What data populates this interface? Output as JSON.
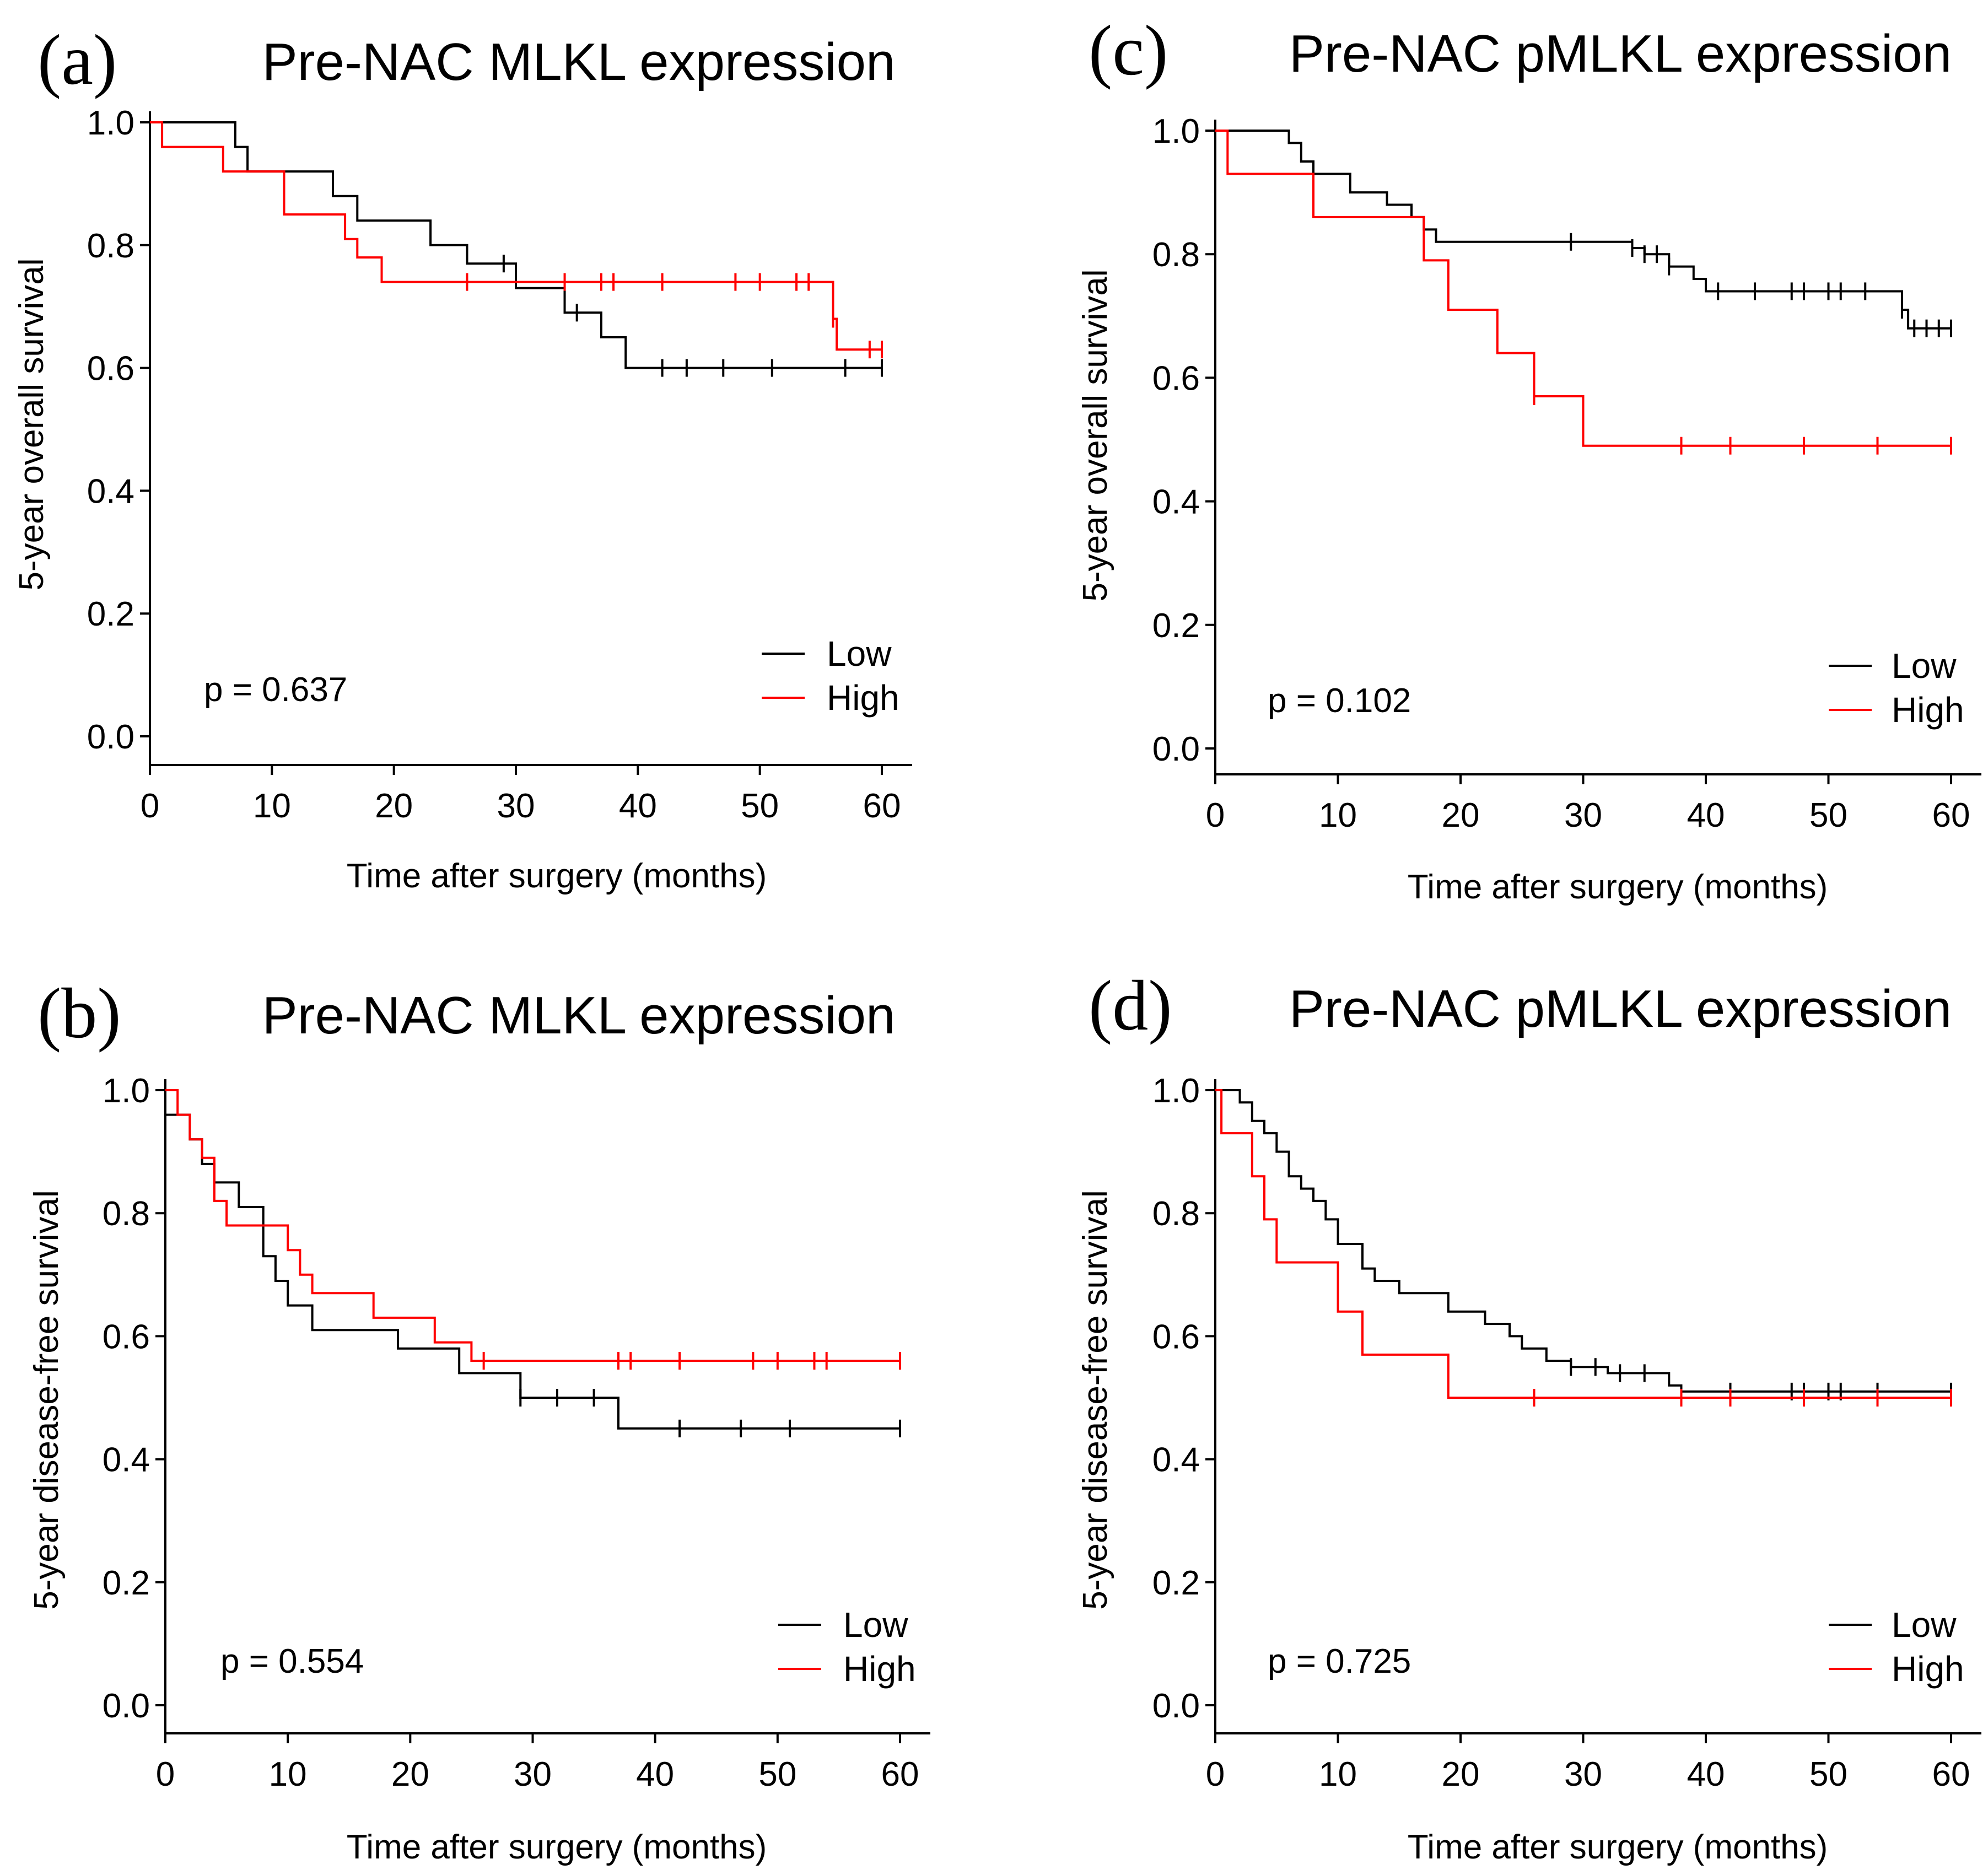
{
  "chart_data": [
    {
      "id": "a",
      "type": "line",
      "panel_label": "(a)",
      "title": "Pre-NAC MLKL expression",
      "xlabel": "Time after surgery (months)",
      "ylabel": "5-year overall survival",
      "xlim": [
        0,
        60
      ],
      "ylim": [
        0,
        1
      ],
      "x_ticks": [
        "0",
        "10",
        "20",
        "30",
        "40",
        "50",
        "60"
      ],
      "y_ticks": [
        "0.0",
        "0.2",
        "0.4",
        "0.6",
        "0.8",
        "1.0"
      ],
      "p_value": "p = 0.637",
      "legend": [
        {
          "label": "Low",
          "color": "#000000"
        },
        {
          "label": "High",
          "color": "#ff0000"
        }
      ],
      "series": [
        {
          "name": "Low",
          "color": "#000000",
          "steps": [
            [
              0,
              1.0
            ],
            [
              7,
              0.96
            ],
            [
              8,
              0.92
            ],
            [
              15,
              0.88
            ],
            [
              17,
              0.84
            ],
            [
              23,
              0.8
            ],
            [
              26,
              0.77
            ],
            [
              30,
              0.73
            ],
            [
              34,
              0.69
            ],
            [
              37,
              0.65
            ],
            [
              39,
              0.6
            ],
            [
              60,
              0.6
            ]
          ],
          "censors": [
            29,
            35,
            42,
            44,
            47,
            51,
            57,
            60
          ]
        },
        {
          "name": "High",
          "color": "#ff0000",
          "steps": [
            [
              0,
              1.0
            ],
            [
              1,
              0.96
            ],
            [
              6,
              0.92
            ],
            [
              11,
              0.85
            ],
            [
              16,
              0.81
            ],
            [
              17,
              0.78
            ],
            [
              19,
              0.74
            ],
            [
              56,
              0.68
            ],
            [
              56.3,
              0.63
            ],
            [
              60,
              0.63
            ]
          ],
          "censors": [
            26,
            34,
            37,
            38,
            42,
            48,
            50,
            53,
            54,
            56,
            59,
            60
          ]
        }
      ]
    },
    {
      "id": "b",
      "type": "line",
      "panel_label": "(b)",
      "title": "Pre-NAC MLKL expression",
      "xlabel": "Time after surgery (months)",
      "ylabel": "5-year disease-free survival",
      "xlim": [
        0,
        60
      ],
      "ylim": [
        0,
        1
      ],
      "x_ticks": [
        "0",
        "10",
        "20",
        "30",
        "40",
        "50",
        "60"
      ],
      "y_ticks": [
        "0.0",
        "0.2",
        "0.4",
        "0.6",
        "0.8",
        "1.0"
      ],
      "p_value": "p = 0.554",
      "legend": [
        {
          "label": "Low",
          "color": "#000000"
        },
        {
          "label": "High",
          "color": "#ff0000"
        }
      ],
      "series": [
        {
          "name": "Low",
          "color": "#000000",
          "steps": [
            [
              0,
              0.96
            ],
            [
              2,
              0.92
            ],
            [
              3,
              0.88
            ],
            [
              4,
              0.85
            ],
            [
              6,
              0.81
            ],
            [
              8,
              0.73
            ],
            [
              9,
              0.69
            ],
            [
              10,
              0.65
            ],
            [
              12,
              0.61
            ],
            [
              19,
              0.58
            ],
            [
              24,
              0.54
            ],
            [
              29,
              0.5
            ],
            [
              37,
              0.45
            ],
            [
              60,
              0.45
            ]
          ],
          "censors": [
            29,
            32,
            35,
            42,
            47,
            51,
            60
          ]
        },
        {
          "name": "High",
          "color": "#ff0000",
          "steps": [
            [
              0,
              1.0
            ],
            [
              1,
              0.96
            ],
            [
              2,
              0.92
            ],
            [
              3,
              0.89
            ],
            [
              4,
              0.82
            ],
            [
              5,
              0.78
            ],
            [
              10,
              0.74
            ],
            [
              11,
              0.7
            ],
            [
              12,
              0.67
            ],
            [
              17,
              0.63
            ],
            [
              22,
              0.59
            ],
            [
              25,
              0.56
            ],
            [
              60,
              0.56
            ]
          ],
          "censors": [
            26,
            37,
            38,
            42,
            48,
            50,
            53,
            54,
            60
          ]
        }
      ]
    },
    {
      "id": "c",
      "type": "line",
      "panel_label": "(c)",
      "title": "Pre-NAC pMLKL expression",
      "xlabel": "Time after surgery (months)",
      "ylabel": "5-year overall survival",
      "xlim": [
        0,
        60
      ],
      "ylim": [
        0,
        1
      ],
      "x_ticks": [
        "0",
        "10",
        "20",
        "30",
        "40",
        "50",
        "60"
      ],
      "y_ticks": [
        "0.0",
        "0.2",
        "0.4",
        "0.6",
        "0.8",
        "1.0"
      ],
      "p_value": "p = 0.102",
      "legend": [
        {
          "label": "Low",
          "color": "#000000"
        },
        {
          "label": "High",
          "color": "#ff0000"
        }
      ],
      "series": [
        {
          "name": "Low",
          "color": "#000000",
          "steps": [
            [
              0,
              1.0
            ],
            [
              6,
              0.98
            ],
            [
              7,
              0.95
            ],
            [
              8,
              0.93
            ],
            [
              11,
              0.9
            ],
            [
              14,
              0.88
            ],
            [
              16,
              0.86
            ],
            [
              17,
              0.84
            ],
            [
              18,
              0.82
            ],
            [
              34,
              0.81
            ],
            [
              35,
              0.8
            ],
            [
              37,
              0.78
            ],
            [
              39,
              0.76
            ],
            [
              40,
              0.74
            ],
            [
              56,
              0.71
            ],
            [
              56.5,
              0.68
            ],
            [
              60,
              0.68
            ]
          ],
          "censors": [
            29,
            34,
            35,
            36,
            37,
            41,
            44,
            47,
            48,
            50,
            51,
            53,
            56,
            57,
            58,
            59,
            60
          ]
        },
        {
          "name": "High",
          "color": "#ff0000",
          "steps": [
            [
              0,
              1.0
            ],
            [
              1,
              0.93
            ],
            [
              8,
              0.86
            ],
            [
              17,
              0.79
            ],
            [
              19,
              0.71
            ],
            [
              23,
              0.64
            ],
            [
              26,
              0.57
            ],
            [
              30,
              0.49
            ],
            [
              60,
              0.49
            ]
          ],
          "censors": [
            26,
            38,
            42,
            48,
            54,
            60
          ]
        }
      ]
    },
    {
      "id": "d",
      "type": "line",
      "panel_label": "(d)",
      "title": "Pre-NAC pMLKL expression",
      "xlabel": "Time after surgery (months)",
      "ylabel": "5-year disease-free survival",
      "xlim": [
        0,
        60
      ],
      "ylim": [
        0,
        1
      ],
      "x_ticks": [
        "0",
        "10",
        "20",
        "30",
        "40",
        "50",
        "60"
      ],
      "y_ticks": [
        "0.0",
        "0.2",
        "0.4",
        "0.6",
        "0.8",
        "1.0"
      ],
      "p_value": "p = 0.725",
      "legend": [
        {
          "label": "Low",
          "color": "#000000"
        },
        {
          "label": "High",
          "color": "#ff0000"
        }
      ],
      "series": [
        {
          "name": "Low",
          "color": "#000000",
          "steps": [
            [
              0,
              1.0
            ],
            [
              2,
              0.98
            ],
            [
              3,
              0.95
            ],
            [
              4,
              0.93
            ],
            [
              5,
              0.9
            ],
            [
              6,
              0.86
            ],
            [
              7,
              0.84
            ],
            [
              8,
              0.82
            ],
            [
              9,
              0.79
            ],
            [
              10,
              0.75
            ],
            [
              12,
              0.71
            ],
            [
              13,
              0.69
            ],
            [
              15,
              0.67
            ],
            [
              19,
              0.64
            ],
            [
              22,
              0.62
            ],
            [
              24,
              0.6
            ],
            [
              25,
              0.58
            ],
            [
              27,
              0.56
            ],
            [
              29,
              0.55
            ],
            [
              32,
              0.54
            ],
            [
              37,
              0.52
            ],
            [
              38,
              0.51
            ],
            [
              60,
              0.51
            ]
          ],
          "censors": [
            29,
            31,
            33,
            35,
            42,
            47,
            48,
            50,
            51,
            54,
            60
          ]
        },
        {
          "name": "High",
          "color": "#ff0000",
          "steps": [
            [
              0,
              1.0
            ],
            [
              0.5,
              0.93
            ],
            [
              3,
              0.86
            ],
            [
              4,
              0.79
            ],
            [
              5,
              0.72
            ],
            [
              10,
              0.64
            ],
            [
              12,
              0.57
            ],
            [
              19,
              0.5
            ],
            [
              60,
              0.5
            ]
          ],
          "censors": [
            26,
            38,
            42,
            48,
            54,
            60
          ]
        }
      ]
    }
  ]
}
